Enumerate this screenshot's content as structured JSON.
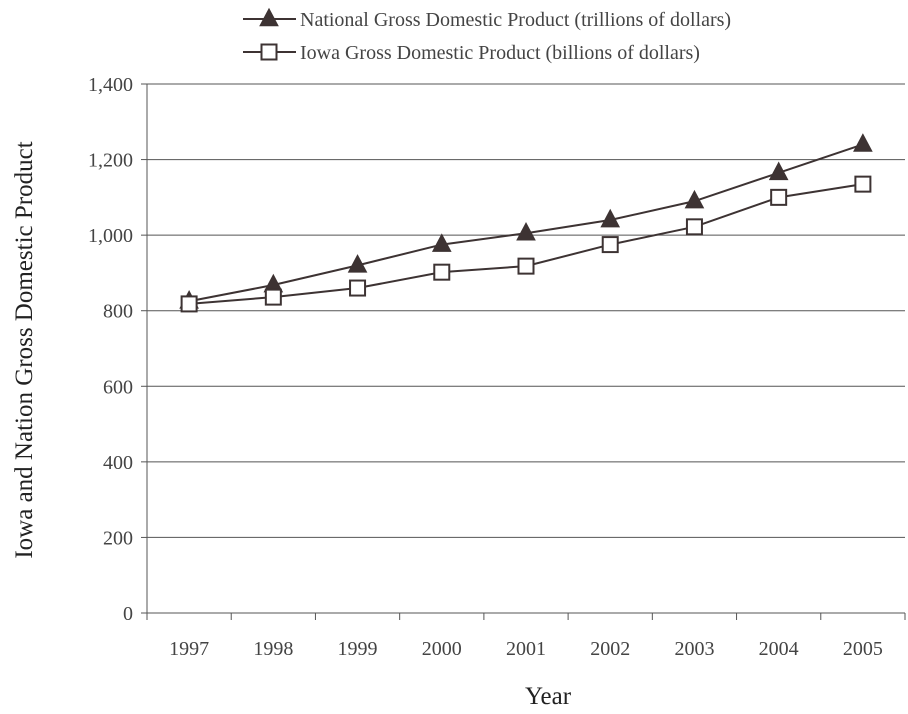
{
  "chart_data": {
    "type": "line",
    "title": "",
    "xlabel": "Year",
    "ylabel": "Iowa and Nation Gross Domestic Product",
    "categories": [
      "1997",
      "1998",
      "1999",
      "2000",
      "2001",
      "2002",
      "2003",
      "2004",
      "2005"
    ],
    "ylim": [
      0,
      1400
    ],
    "yticks": [
      0,
      200,
      400,
      600,
      800,
      1000,
      1200,
      1400
    ],
    "ytick_labels": [
      "0",
      "200",
      "400",
      "600",
      "800",
      "1,000",
      "1,200",
      "1,400"
    ],
    "grid": "horizontal",
    "legend_position": "top",
    "series": [
      {
        "name": "National Gross Domestic Product (trillions of dollars)",
        "marker": "filled-triangle",
        "color": "#3d3333",
        "values": [
          825,
          868,
          920,
          975,
          1005,
          1040,
          1090,
          1165,
          1240
        ]
      },
      {
        "name": "Iowa Gross Domestic Product (billions of dollars)",
        "marker": "open-square",
        "color": "#3d3333",
        "values": [
          818,
          836,
          860,
          902,
          918,
          975,
          1022,
          1100,
          1135
        ]
      }
    ]
  }
}
